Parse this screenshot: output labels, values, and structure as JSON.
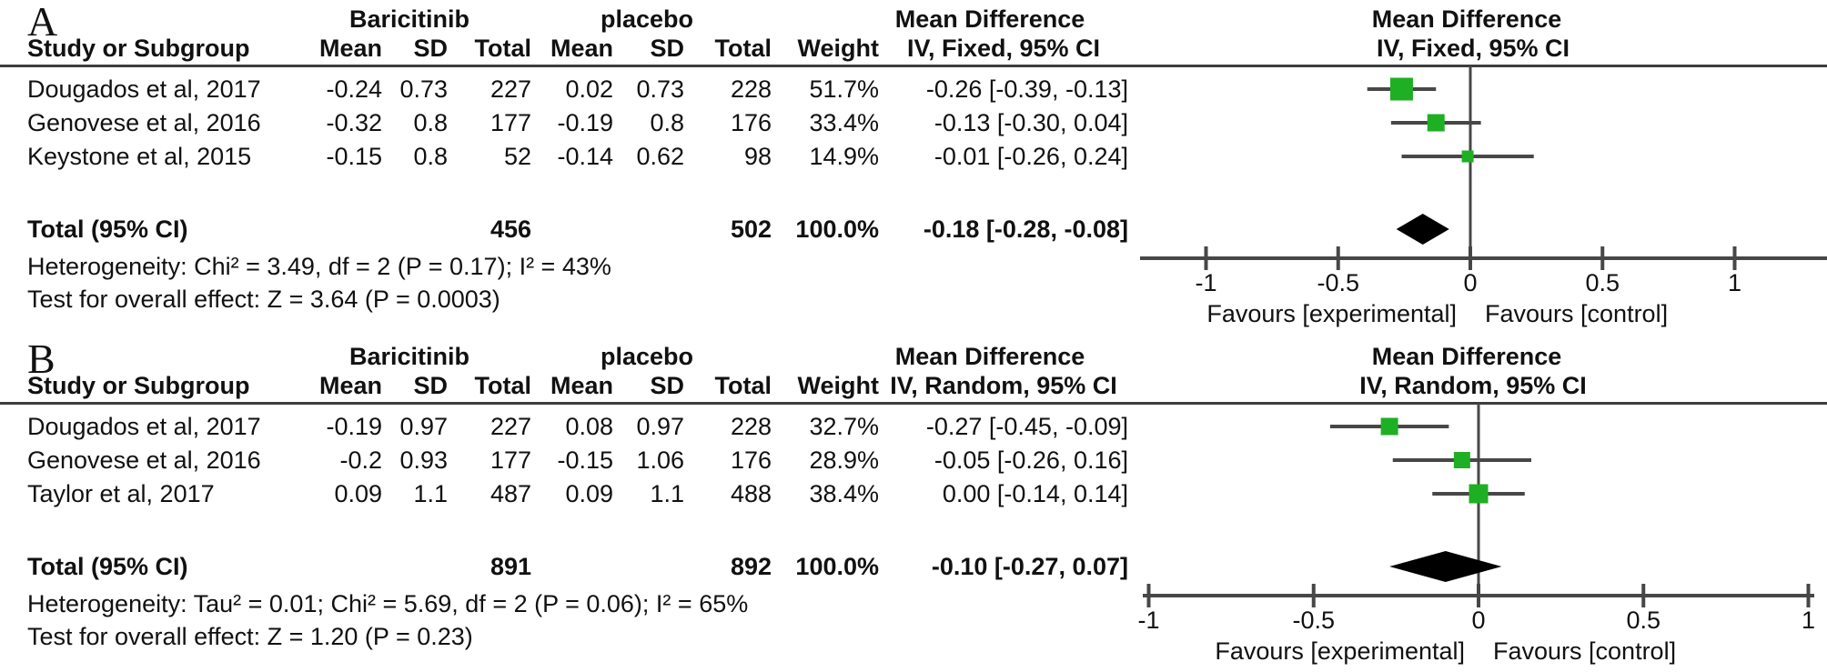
{
  "chart_data": [
    {
      "type": "forest",
      "panel_label": "A",
      "effect_model": "Fixed",
      "marker_color": "#1FAF24",
      "line_color": "#474747",
      "headers": {
        "study": "Study or Subgroup",
        "group1": "Baricitinib",
        "group2": "placebo",
        "mean": "Mean",
        "sd": "SD",
        "total": "Total",
        "weight": "Weight",
        "mean_difference": "Mean Difference",
        "ci_method": "IV, Fixed, 95% CI"
      },
      "studies": [
        {
          "name": "Dougados et al, 2017",
          "mean1": "-0.24",
          "sd1": "0.73",
          "n1": "227",
          "mean2": "0.02",
          "sd2": "0.73",
          "n2": "228",
          "weight": "51.7%",
          "weight_pct": 51.7,
          "ci_text": "-0.26 [-0.39, -0.13]",
          "est": -0.26,
          "lo": -0.39,
          "hi": -0.13
        },
        {
          "name": "Genovese et al, 2016",
          "mean1": "-0.32",
          "sd1": "0.8",
          "n1": "177",
          "mean2": "-0.19",
          "sd2": "0.8",
          "n2": "176",
          "weight": "33.4%",
          "weight_pct": 33.4,
          "ci_text": "-0.13 [-0.30, 0.04]",
          "est": -0.13,
          "lo": -0.3,
          "hi": 0.04
        },
        {
          "name": "Keystone et al, 2015",
          "mean1": "-0.15",
          "sd1": "0.8",
          "n1": "52",
          "mean2": "-0.14",
          "sd2": "0.62",
          "n2": "98",
          "weight": "14.9%",
          "weight_pct": 14.9,
          "ci_text": "-0.01 [-0.26, 0.24]",
          "est": -0.01,
          "lo": -0.26,
          "hi": 0.24
        }
      ],
      "total": {
        "label": "Total (95% CI)",
        "n1": "456",
        "n2": "502",
        "weight": "100.0%",
        "ci_text": "-0.18 [-0.28, -0.08]",
        "est": -0.18,
        "lo": -0.28,
        "hi": -0.08
      },
      "heterogeneity": "Heterogeneity: Chi² = 3.49, df = 2 (P = 0.17); I² = 43%",
      "overall_test": "Test for overall effect: Z = 3.64 (P = 0.0003)",
      "axis": {
        "xlim": [
          -1,
          1
        ],
        "tick_values": [
          -1,
          -0.5,
          0,
          0.5,
          1
        ],
        "tick_labels": [
          "-1",
          "-0.5",
          "0",
          "0.5",
          "1"
        ],
        "favours_left": "Favours [experimental]",
        "favours_right": "Favours [control]"
      }
    },
    {
      "type": "forest",
      "panel_label": "B",
      "effect_model": "Random",
      "marker_color": "#1FAF24",
      "line_color": "#474747",
      "headers": {
        "study": "Study or Subgroup",
        "group1": "Baricitinib",
        "group2": "placebo",
        "mean": "Mean",
        "sd": "SD",
        "total": "Total",
        "weight": "Weight",
        "mean_difference": "Mean Difference",
        "ci_method": "IV, Random, 95% CI"
      },
      "studies": [
        {
          "name": "Dougados et al, 2017",
          "mean1": "-0.19",
          "sd1": "0.97",
          "n1": "227",
          "mean2": "0.08",
          "sd2": "0.97",
          "n2": "228",
          "weight": "32.7%",
          "weight_pct": 32.7,
          "ci_text": "-0.27 [-0.45, -0.09]",
          "est": -0.27,
          "lo": -0.45,
          "hi": -0.09
        },
        {
          "name": "Genovese et al, 2016",
          "mean1": "-0.2",
          "sd1": "0.93",
          "n1": "177",
          "mean2": "-0.15",
          "sd2": "1.06",
          "n2": "176",
          "weight": "28.9%",
          "weight_pct": 28.9,
          "ci_text": "-0.05 [-0.26, 0.16]",
          "est": -0.05,
          "lo": -0.26,
          "hi": 0.16
        },
        {
          "name": "Taylor et al, 2017",
          "mean1": "0.09",
          "sd1": "1.1",
          "n1": "487",
          "mean2": "0.09",
          "sd2": "1.1",
          "n2": "488",
          "weight": "38.4%",
          "weight_pct": 38.4,
          "ci_text": "0.00 [-0.14, 0.14]",
          "est": 0.0,
          "lo": -0.14,
          "hi": 0.14
        }
      ],
      "total": {
        "label": "Total (95% CI)",
        "n1": "891",
        "n2": "892",
        "weight": "100.0%",
        "ci_text": "-0.10 [-0.27, 0.07]",
        "est": -0.1,
        "lo": -0.27,
        "hi": 0.07
      },
      "heterogeneity": "Heterogeneity: Tau² = 0.01; Chi² = 5.69, df = 2 (P = 0.06); I² = 65%",
      "overall_test": "Test for overall effect: Z = 1.20 (P = 0.23)",
      "axis": {
        "xlim": [
          -1,
          1
        ],
        "tick_values": [
          -1,
          -0.5,
          0,
          0.5,
          1
        ],
        "tick_labels": [
          "-1",
          "-0.5",
          "0",
          "0.5",
          "1"
        ],
        "favours_left": "Favours [experimental]",
        "favours_right": "Favours [control]"
      }
    }
  ]
}
